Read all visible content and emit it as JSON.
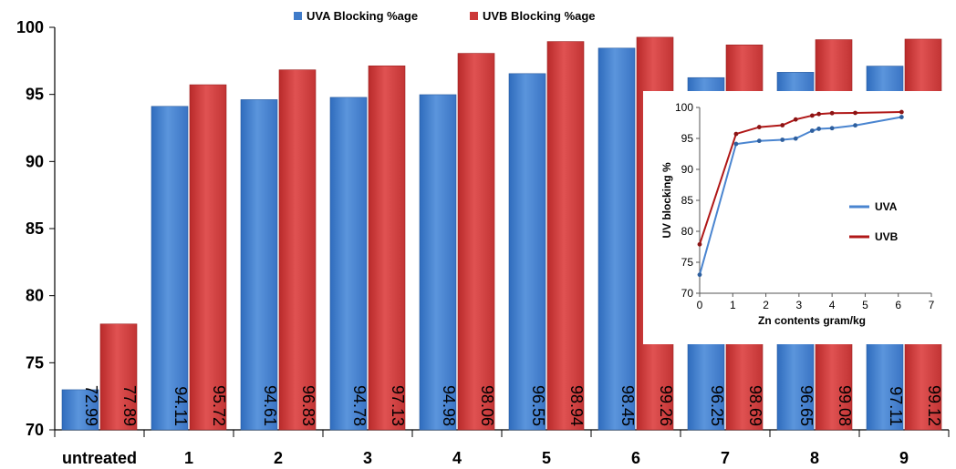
{
  "chart_data": [
    {
      "type": "bar",
      "categories": [
        "untreated",
        "1",
        "2",
        "3",
        "4",
        "5",
        "6",
        "7",
        "8",
        "9"
      ],
      "series": [
        {
          "name": "UVA Blocking  %age",
          "color": "#4a85d0",
          "values": [
            72.99,
            94.11,
            94.61,
            94.78,
            94.98,
            96.55,
            98.45,
            96.25,
            96.65,
            97.11
          ],
          "labels": [
            "72.99",
            "94.11",
            "94.61",
            "94.78",
            "94.98",
            "96.55",
            "98.45",
            "96.25",
            "96.65",
            "97.11"
          ]
        },
        {
          "name": "UVB Blocking  %age",
          "color": "#d24040",
          "values": [
            77.89,
            95.72,
            96.83,
            97.13,
            98.06,
            98.94,
            99.26,
            98.69,
            99.08,
            99.12
          ],
          "labels": [
            "77.89",
            "95.72",
            "96.83",
            "97.13",
            "98.06",
            "98.94",
            "99.26",
            "98.69",
            "99.08",
            "99.12"
          ]
        }
      ],
      "yticks": [
        "70",
        "75",
        "80",
        "85",
        "90",
        "95",
        "100"
      ],
      "ylim": [
        70,
        100
      ],
      "legend_position": "top-center",
      "grid": false
    },
    {
      "type": "line",
      "xlabel": "Zn contents gram/kg",
      "ylabel": "UV blocking %",
      "xlim": [
        0,
        7
      ],
      "ylim": [
        70,
        100
      ],
      "xticks": [
        "0",
        "1",
        "2",
        "3",
        "4",
        "5",
        "6",
        "7"
      ],
      "yticks": [
        "70",
        "75",
        "80",
        "85",
        "90",
        "95",
        "100"
      ],
      "legend_position": "right",
      "grid": false,
      "series": [
        {
          "name": "UVA",
          "color": "#4a85d0",
          "x": [
            0,
            1.1,
            1.8,
            2.5,
            2.9,
            3.4,
            3.6,
            4.0,
            4.7,
            6.1
          ],
          "y": [
            72.99,
            94.11,
            94.61,
            94.78,
            94.98,
            96.25,
            96.55,
            96.65,
            97.11,
            98.45
          ]
        },
        {
          "name": "UVB",
          "color": "#b01818",
          "x": [
            0,
            1.1,
            1.8,
            2.5,
            2.9,
            3.4,
            3.6,
            4.0,
            4.7,
            6.1
          ],
          "y": [
            77.89,
            95.72,
            96.83,
            97.13,
            98.06,
            98.69,
            98.94,
            99.08,
            99.12,
            99.26
          ]
        }
      ]
    }
  ]
}
